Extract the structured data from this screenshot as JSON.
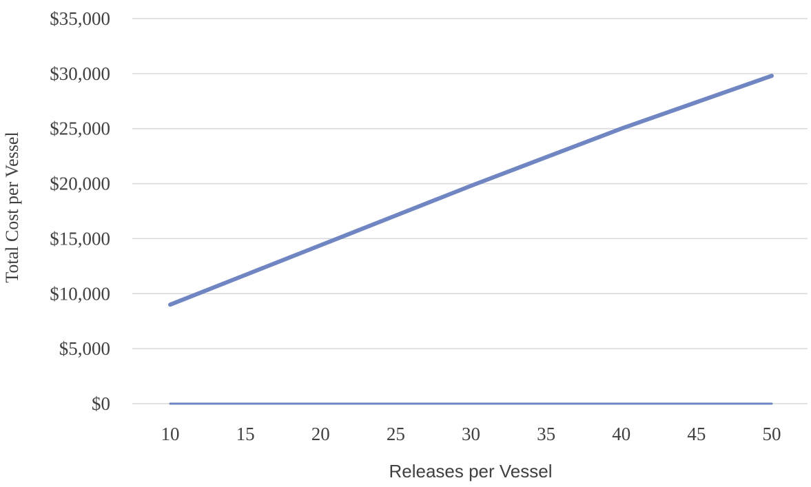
{
  "chart_data": {
    "type": "line",
    "x": [
      10,
      15,
      20,
      25,
      30,
      35,
      40,
      45,
      50
    ],
    "series": [
      {
        "values": [
          9000,
          11700,
          14400,
          17100,
          19800,
          22400,
          25000,
          27400,
          29800
        ],
        "color": "#7086c2"
      },
      {
        "values": [
          0,
          0,
          0,
          0,
          0,
          0,
          0,
          0,
          0
        ],
        "color": "#6f84c0"
      }
    ],
    "xlabel": "Releases per Vessel",
    "ylabel": "Total Cost per Vessel",
    "ylim": [
      0,
      35000
    ],
    "y_ticks": [
      "$0",
      "$5,000",
      "$10,000",
      "$15,000",
      "$20,000",
      "$25,000",
      "$30,000",
      "$35,000"
    ],
    "x_ticks": [
      "10",
      "15",
      "20",
      "25",
      "30",
      "35",
      "40",
      "45",
      "50"
    ],
    "grid": "horizontal",
    "legend": "none"
  }
}
